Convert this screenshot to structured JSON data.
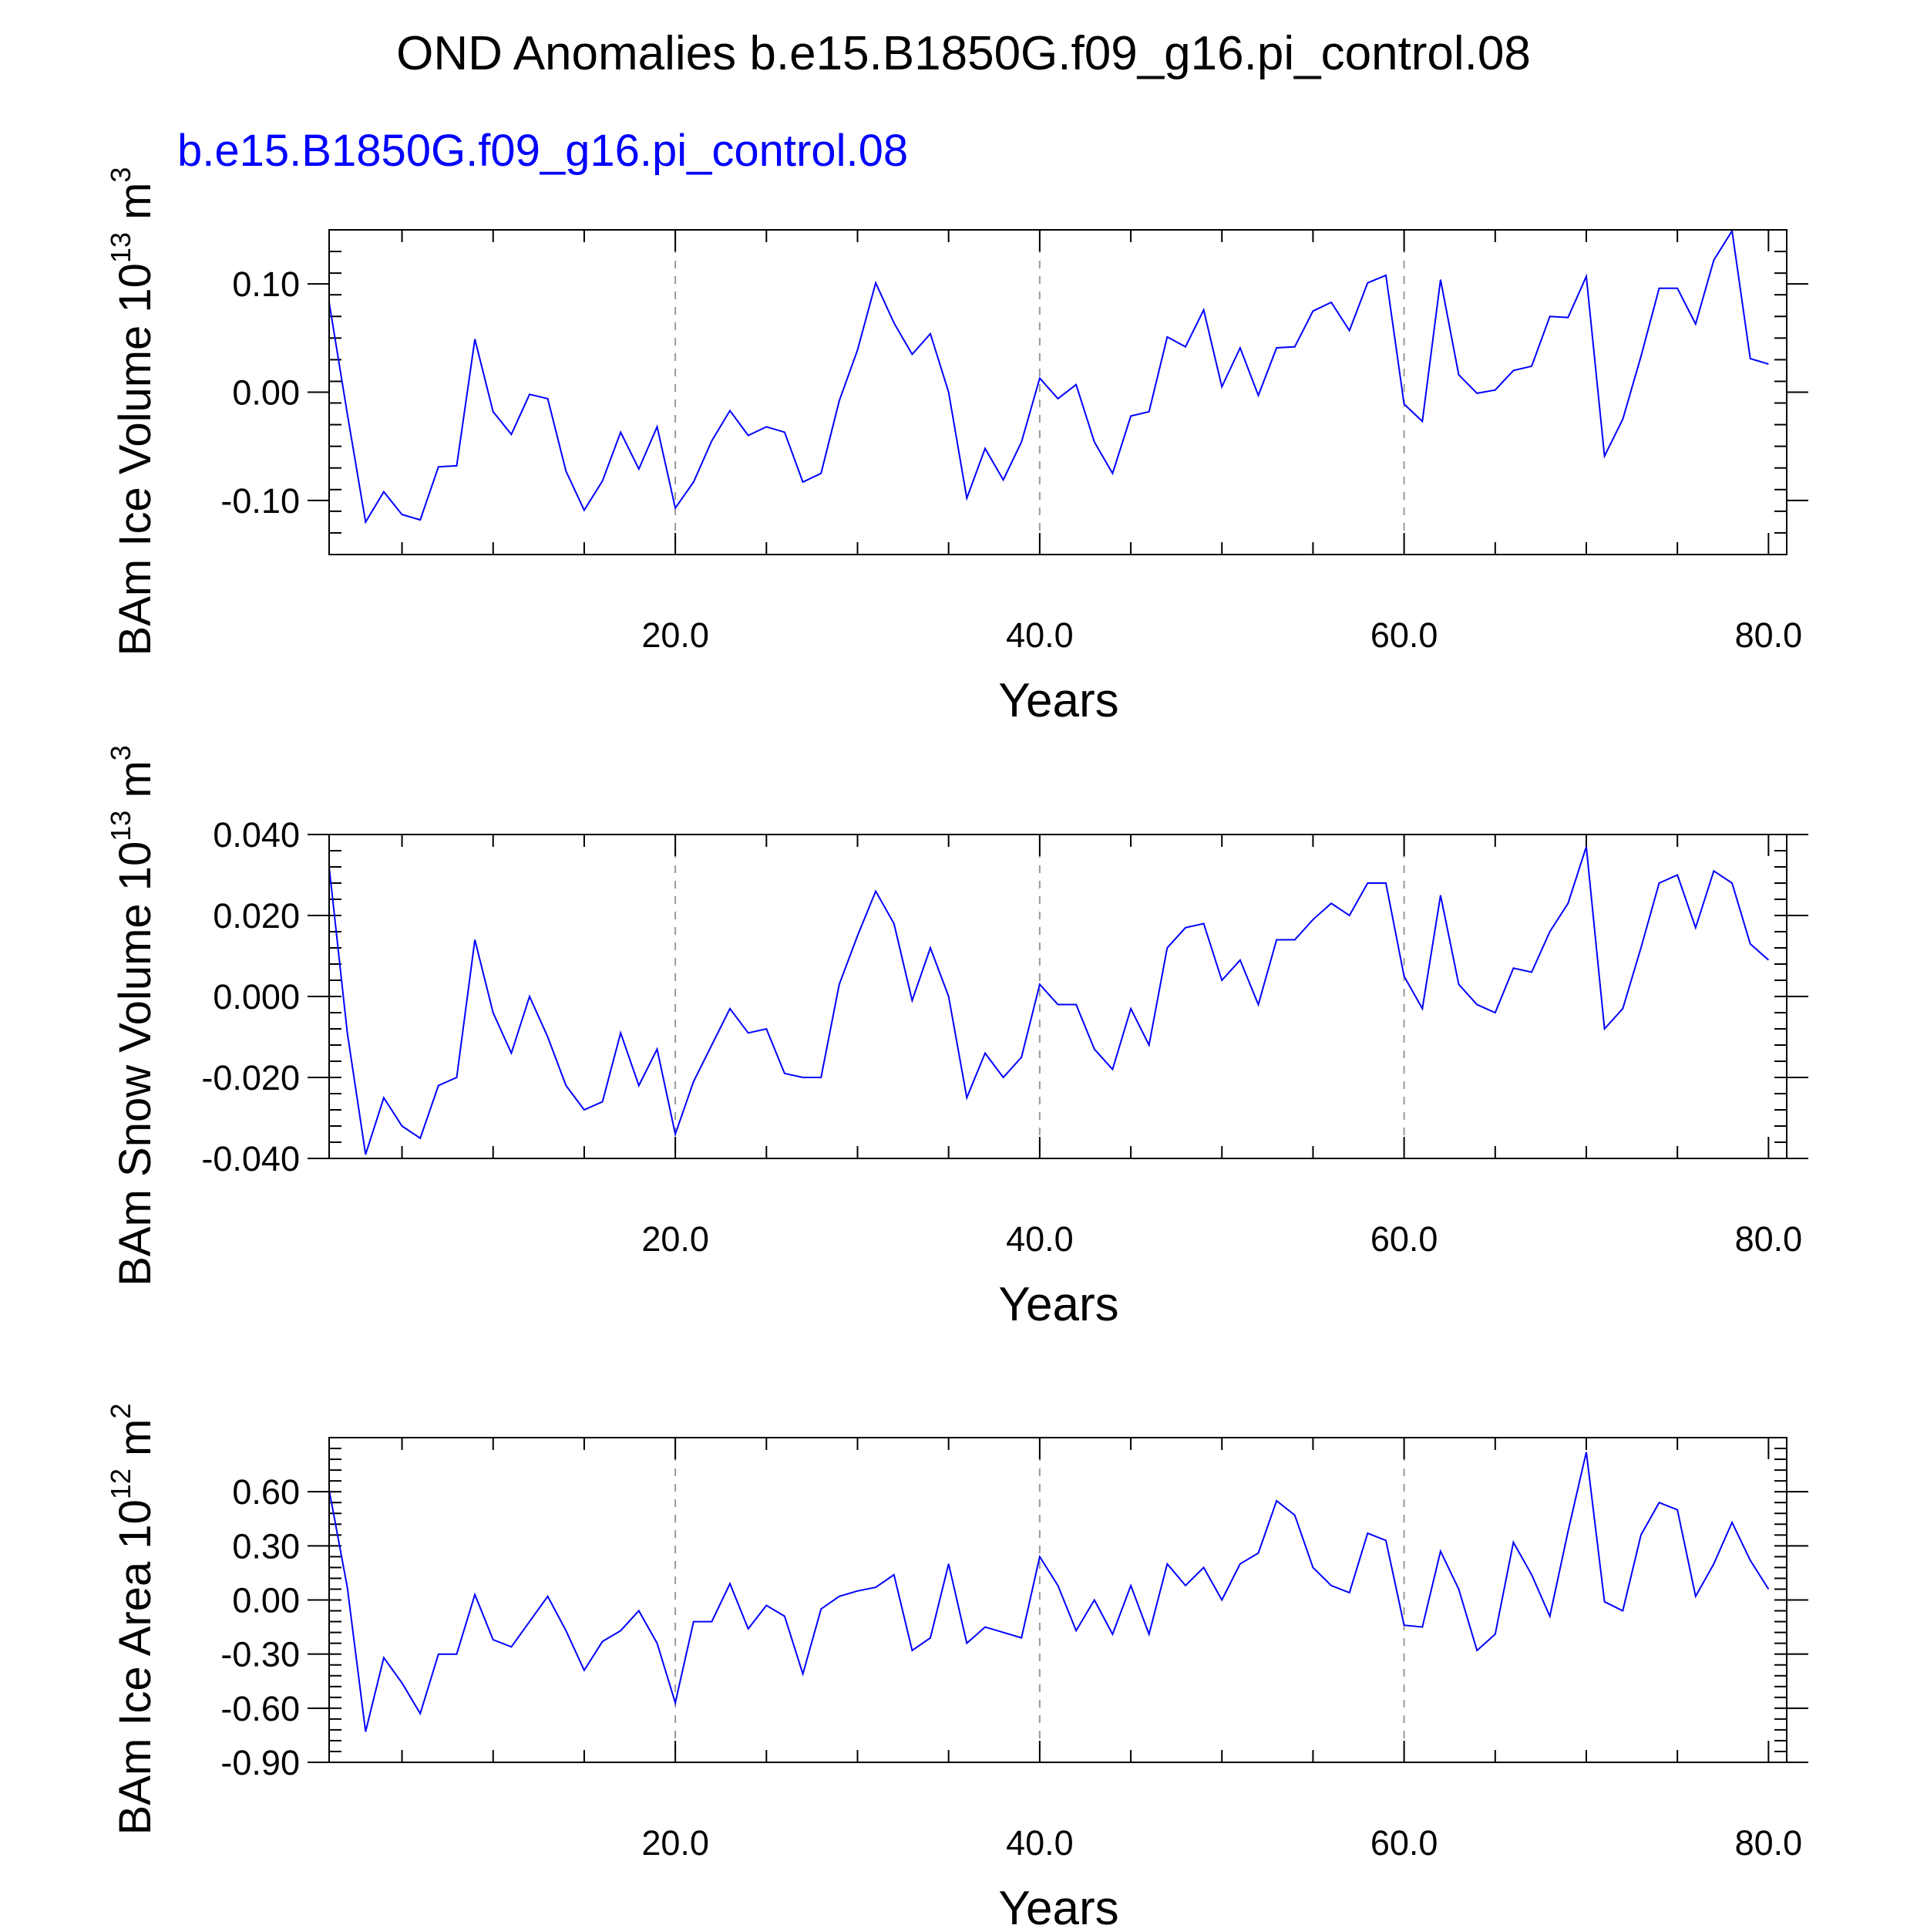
{
  "title": "OND Anomalies b.e15.B1850G.f09_g16.pi_control.08",
  "subtitle": "b.e15.B1850G.f09_g16.pi_control.08",
  "colors": {
    "series": "#0000ff",
    "subtitle": "#0000ff",
    "axes": "#000000",
    "grid": "#999999"
  },
  "chart_data": [
    {
      "type": "line",
      "ylabel": {
        "prefix": "BAm Ice Volume 10",
        "exp": "13",
        "unit": " m",
        "unit_exp": "3"
      },
      "xlabel": "Years",
      "xlim": [
        1,
        81
      ],
      "ylim": [
        -0.15,
        0.15
      ],
      "xticks": [
        20,
        40,
        60,
        80
      ],
      "xtick_labels": [
        "20.0",
        "40.0",
        "60.0",
        "80.0"
      ],
      "yticks": [
        -0.1,
        0.0,
        0.1
      ],
      "ytick_labels": [
        "-0.10",
        "0.00",
        "0.10"
      ],
      "x_grid": "dashed vertical at 20, 40, 60",
      "series": [
        {
          "values": [
            0.083,
            -0.02,
            -0.12,
            -0.092,
            -0.113,
            -0.118,
            -0.069,
            -0.068,
            0.049,
            -0.018,
            -0.039,
            -0.002,
            -0.006,
            -0.073,
            -0.109,
            -0.082,
            -0.037,
            -0.071,
            -0.032,
            -0.107,
            -0.083,
            -0.045,
            -0.017,
            -0.04,
            -0.032,
            -0.037,
            -0.083,
            -0.075,
            -0.008,
            0.039,
            0.101,
            0.064,
            0.035,
            0.054,
            0.0,
            -0.098,
            -0.052,
            -0.081,
            -0.046,
            0.013,
            -0.006,
            0.007,
            -0.046,
            -0.075,
            -0.022,
            -0.018,
            0.051,
            0.042,
            0.076,
            0.005,
            0.041,
            -0.003,
            0.041,
            0.042,
            0.075,
            0.083,
            0.057,
            0.101,
            0.108,
            -0.011,
            -0.027,
            0.104,
            0.016,
            -0.001,
            0.002,
            0.02,
            0.024,
            0.07,
            0.069,
            0.107,
            -0.059,
            -0.025,
            0.033,
            0.096,
            0.096,
            0.063,
            0.122,
            0.149,
            0.031,
            0.026
          ]
        }
      ]
    },
    {
      "type": "line",
      "ylabel": {
        "prefix": "BAm Snow Volume 10",
        "exp": "13",
        "unit": " m",
        "unit_exp": "3"
      },
      "xlabel": "Years",
      "xlim": [
        1,
        81
      ],
      "ylim": [
        -0.04,
        0.04
      ],
      "xticks": [
        20,
        40,
        60,
        80
      ],
      "xtick_labels": [
        "20.0",
        "40.0",
        "60.0",
        "80.0"
      ],
      "yticks": [
        -0.04,
        -0.02,
        0.0,
        0.02,
        0.04
      ],
      "ytick_labels": [
        "-0.040",
        "-0.020",
        "0.000",
        "0.020",
        "0.040"
      ],
      "x_grid": "dashed vertical at 20, 40, 60",
      "series": [
        {
          "values": [
            0.032,
            -0.009,
            -0.039,
            -0.025,
            -0.032,
            -0.035,
            -0.022,
            -0.02,
            0.014,
            -0.004,
            -0.014,
            0.0,
            -0.01,
            -0.022,
            -0.028,
            -0.026,
            -0.009,
            -0.022,
            -0.013,
            -0.034,
            -0.021,
            -0.012,
            -0.003,
            -0.009,
            -0.008,
            -0.019,
            -0.02,
            -0.02,
            0.003,
            0.015,
            0.026,
            0.018,
            -0.001,
            0.012,
            0.0,
            -0.025,
            -0.014,
            -0.02,
            -0.015,
            0.003,
            -0.002,
            -0.002,
            -0.013,
            -0.018,
            -0.003,
            -0.012,
            0.012,
            0.017,
            0.018,
            0.004,
            0.009,
            -0.002,
            0.014,
            0.014,
            0.019,
            0.023,
            0.02,
            0.028,
            0.028,
            0.005,
            -0.003,
            0.025,
            0.003,
            -0.002,
            -0.004,
            0.007,
            0.006,
            0.016,
            0.023,
            0.037,
            -0.008,
            -0.003,
            0.012,
            0.028,
            0.03,
            0.017,
            0.031,
            0.028,
            0.013,
            0.009
          ]
        }
      ]
    },
    {
      "type": "line",
      "ylabel": {
        "prefix": "BAm Ice Area 10",
        "exp": "12",
        "unit": " m",
        "unit_exp": "2"
      },
      "xlabel": "Years",
      "xlim": [
        1,
        81
      ],
      "ylim": [
        -0.9,
        0.9
      ],
      "xticks": [
        20,
        40,
        60,
        80
      ],
      "xtick_labels": [
        "20.0",
        "40.0",
        "60.0",
        "80.0"
      ],
      "yticks": [
        -0.9,
        -0.6,
        -0.3,
        0.0,
        0.3,
        0.6
      ],
      "ytick_labels": [
        "-0.90",
        "-0.60",
        "-0.30",
        "0.00",
        "0.30",
        "0.60"
      ],
      "x_grid": "dashed vertical at 20, 40, 60",
      "series": [
        {
          "values": [
            0.61,
            0.07,
            -0.73,
            -0.32,
            -0.46,
            -0.63,
            -0.3,
            -0.3,
            0.03,
            -0.22,
            -0.26,
            -0.12,
            0.02,
            -0.17,
            -0.39,
            -0.23,
            -0.17,
            -0.06,
            -0.24,
            -0.57,
            -0.12,
            -0.12,
            0.09,
            -0.16,
            -0.03,
            -0.09,
            -0.41,
            -0.05,
            0.02,
            0.05,
            0.07,
            0.14,
            -0.28,
            -0.21,
            0.2,
            -0.24,
            -0.15,
            -0.18,
            -0.21,
            0.24,
            0.08,
            -0.17,
            0.0,
            -0.19,
            0.08,
            -0.19,
            0.2,
            0.08,
            0.18,
            0.0,
            0.2,
            0.26,
            0.55,
            0.47,
            0.18,
            0.08,
            0.04,
            0.37,
            0.33,
            -0.14,
            -0.15,
            0.27,
            0.06,
            -0.28,
            -0.19,
            0.32,
            0.14,
            -0.09,
            0.38,
            0.82,
            -0.01,
            -0.06,
            0.36,
            0.54,
            0.5,
            0.02,
            0.2,
            0.43,
            0.22,
            0.06
          ]
        }
      ]
    }
  ]
}
